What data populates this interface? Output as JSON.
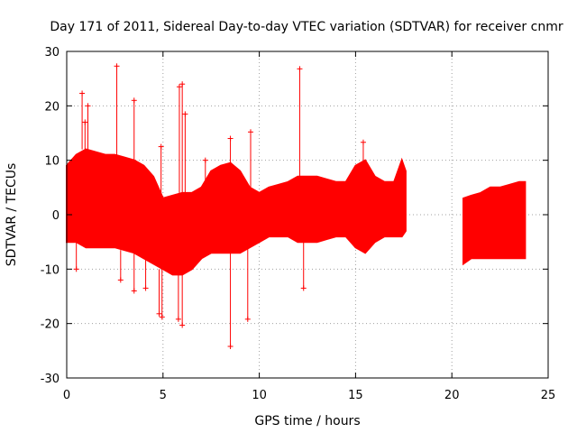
{
  "chart_data": {
    "type": "scatter",
    "title": "Day 171 of 2011, Sidereal Day-to-day VTEC variation (SDTVAR) for receiver cnmr",
    "xlabel": "GPS time / hours",
    "ylabel": "SDTVAR / TECUs",
    "xlim": [
      0,
      25
    ],
    "ylim": [
      -30,
      30
    ],
    "xticks": [
      "0",
      "5",
      "10",
      "15",
      "20",
      "25"
    ],
    "yticks": [
      "-30",
      "-20",
      "-10",
      "0",
      "10",
      "20",
      "30"
    ],
    "grid": true,
    "marker": "+",
    "series": [
      {
        "name": "SDTVAR",
        "color": "#ff0000",
        "envelope_x": [
          0.0,
          0.5,
          1.0,
          1.5,
          2.0,
          2.5,
          3.0,
          3.5,
          4.0,
          4.5,
          5.0,
          5.5,
          6.0,
          6.5,
          7.0,
          7.5,
          8.0,
          8.5,
          9.0,
          9.5,
          10.0,
          10.5,
          11.0,
          11.5,
          12.0,
          12.5,
          13.0,
          13.5,
          14.0,
          14.5,
          15.0,
          15.5,
          16.0,
          16.5,
          17.0,
          17.4,
          17.6,
          20.6,
          21.0,
          21.5,
          22.0,
          22.5,
          23.0,
          23.5,
          23.8
        ],
        "envelope_upper": [
          9,
          11,
          12,
          11.5,
          11,
          11,
          10.5,
          10,
          9,
          7,
          3,
          3.5,
          4,
          4,
          5,
          8,
          9,
          9.5,
          8,
          5,
          4,
          5,
          5.5,
          6,
          7,
          7,
          7,
          6.5,
          6,
          6,
          9,
          10,
          7,
          6,
          6,
          10,
          8,
          3,
          3.5,
          4,
          5,
          5,
          5.5,
          6,
          6
        ],
        "envelope_lower": [
          -5,
          -5,
          -6,
          -6,
          -6,
          -6,
          -6.5,
          -7,
          -8,
          -9,
          -10,
          -11,
          -11,
          -10,
          -8,
          -7,
          -7,
          -7,
          -7,
          -6,
          -5,
          -4,
          -4,
          -4,
          -5,
          -5,
          -5,
          -4.5,
          -4,
          -4,
          -6,
          -7,
          -5,
          -4,
          -4,
          -4,
          -3,
          -9,
          -8,
          -8,
          -8,
          -8,
          -8,
          -8,
          -8
        ],
        "outliers_x": [
          0.8,
          0.95,
          1.1,
          2.6,
          3.5,
          4.9,
          5.85,
          6.0,
          6.15,
          7.2,
          8.5,
          9.55,
          12.1,
          15.4,
          2.8,
          3.5,
          4.1,
          4.8,
          4.95,
          5.8,
          6.0,
          8.5,
          9.4,
          12.3,
          0.5
        ],
        "outliers_y": [
          22.3,
          17,
          20,
          27.3,
          21,
          12.5,
          23.5,
          24,
          18.5,
          10,
          14,
          15.2,
          26.8,
          13.3,
          -12,
          -14,
          -13.5,
          -18.2,
          -18.8,
          -19.2,
          -20.3,
          -24.2,
          -19.2,
          -13.5,
          -10
        ]
      }
    ]
  }
}
